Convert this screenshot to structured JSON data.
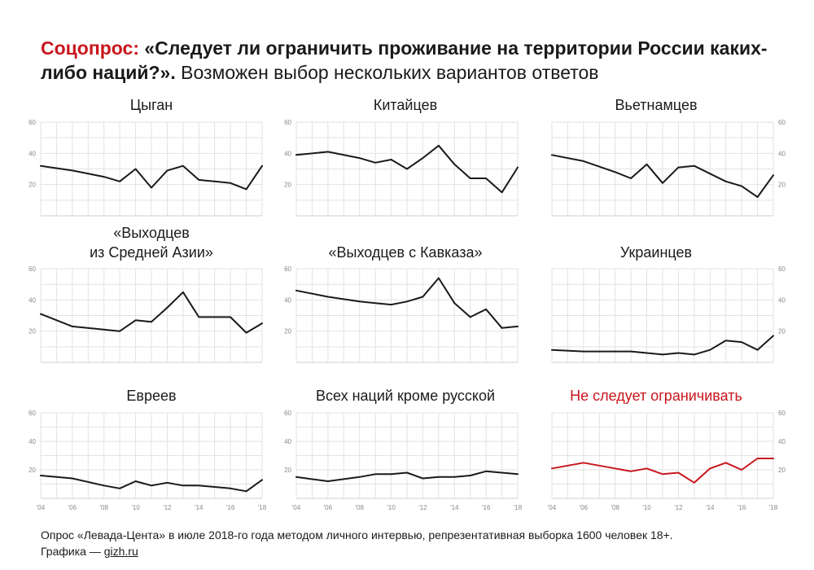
{
  "headline": {
    "tag": "Соцопрос:",
    "question": "«Следует ли ограничить проживание на территории России каких-либо наций?».",
    "note": "Возможен выбор нескольких вариантов ответов"
  },
  "footer": {
    "source": "Опрос «Левада-Цента» в июле 2018-го года методом личного интервью, репрезентативная выборка 1600 человек 18+.",
    "credit_prefix": "Графика — ",
    "credit_link": "gizh.ru"
  },
  "colors": {
    "line": "#1a1a1a",
    "accent": "#c8161d",
    "grid": "#e2e2e2",
    "tick": "#888888"
  },
  "chart_data": [
    {
      "type": "line",
      "title": "Цыган",
      "ylim": [
        0,
        60
      ],
      "yticks": [
        "20",
        "40",
        "60"
      ],
      "x": [
        2004,
        2006,
        2008,
        2009,
        2010,
        2011,
        2012,
        2013,
        2014,
        2015,
        2016,
        2017,
        2018
      ],
      "values": [
        32,
        29,
        25,
        22,
        30,
        18,
        29,
        32,
        23,
        22,
        21,
        17,
        32
      ],
      "color": "#1a1a1a"
    },
    {
      "type": "line",
      "title": "Китайцев",
      "ylim": [
        0,
        60
      ],
      "yticks": [
        "20",
        "40",
        "60"
      ],
      "x": [
        2004,
        2006,
        2008,
        2009,
        2010,
        2011,
        2012,
        2013,
        2014,
        2015,
        2016,
        2017,
        2018
      ],
      "values": [
        39,
        41,
        37,
        34,
        36,
        30,
        37,
        45,
        33,
        24,
        24,
        15,
        31
      ],
      "color": "#1a1a1a"
    },
    {
      "type": "line",
      "title": "Вьетнамцев",
      "ylim": [
        0,
        60
      ],
      "yticks": [
        "20",
        "40",
        "60"
      ],
      "x": [
        2004,
        2006,
        2008,
        2009,
        2010,
        2011,
        2012,
        2013,
        2014,
        2015,
        2016,
        2017,
        2018
      ],
      "values": [
        39,
        35,
        28,
        24,
        33,
        21,
        31,
        32,
        27,
        22,
        19,
        12,
        26
      ],
      "color": "#1a1a1a"
    },
    {
      "type": "line",
      "title": "«Выходцев\nиз Средней Азии»",
      "ylim": [
        0,
        60
      ],
      "yticks": [
        "20",
        "40",
        "60"
      ],
      "x": [
        2004,
        2006,
        2008,
        2009,
        2010,
        2011,
        2012,
        2013,
        2014,
        2015,
        2016,
        2017,
        2018
      ],
      "values": [
        31,
        23,
        21,
        20,
        27,
        26,
        35,
        45,
        29,
        29,
        29,
        19,
        25
      ],
      "color": "#1a1a1a"
    },
    {
      "type": "line",
      "title": "«Выходцев с Кавказа»",
      "ylim": [
        0,
        60
      ],
      "yticks": [
        "20",
        "40",
        "60"
      ],
      "x": [
        2004,
        2006,
        2008,
        2009,
        2010,
        2011,
        2012,
        2013,
        2014,
        2015,
        2016,
        2017,
        2018
      ],
      "values": [
        46,
        42,
        39,
        38,
        37,
        39,
        42,
        54,
        38,
        29,
        34,
        22,
        23
      ],
      "color": "#1a1a1a"
    },
    {
      "type": "line",
      "title": "Украинцев",
      "ylim": [
        0,
        60
      ],
      "yticks": [
        "20",
        "40",
        "60"
      ],
      "x": [
        2004,
        2006,
        2008,
        2009,
        2010,
        2011,
        2012,
        2013,
        2014,
        2015,
        2016,
        2017,
        2018
      ],
      "values": [
        8,
        7,
        7,
        7,
        6,
        5,
        6,
        5,
        8,
        14,
        13,
        8,
        17
      ],
      "color": "#1a1a1a"
    },
    {
      "type": "line",
      "title": "Евреев",
      "ylim": [
        0,
        60
      ],
      "yticks": [
        "20",
        "40",
        "60"
      ],
      "x": [
        2004,
        2006,
        2008,
        2009,
        2010,
        2011,
        2012,
        2013,
        2014,
        2015,
        2016,
        2017,
        2018
      ],
      "values": [
        16,
        14,
        9,
        7,
        12,
        9,
        11,
        9,
        9,
        8,
        7,
        5,
        13
      ],
      "color": "#1a1a1a"
    },
    {
      "type": "line",
      "title": "Всех наций кроме русской",
      "ylim": [
        0,
        60
      ],
      "yticks": [
        "20",
        "40",
        "60"
      ],
      "x": [
        2004,
        2006,
        2008,
        2009,
        2010,
        2011,
        2012,
        2013,
        2014,
        2015,
        2016,
        2017,
        2018
      ],
      "values": [
        15,
        12,
        15,
        17,
        17,
        18,
        14,
        15,
        15,
        16,
        19,
        18,
        17
      ],
      "color": "#1a1a1a"
    },
    {
      "type": "line",
      "title": "Не следует ограничивать",
      "ylim": [
        0,
        60
      ],
      "yticks": [
        "20",
        "40",
        "60"
      ],
      "x": [
        2004,
        2006,
        2008,
        2009,
        2010,
        2011,
        2012,
        2013,
        2014,
        2015,
        2016,
        2017,
        2018
      ],
      "values": [
        21,
        25,
        21,
        19,
        21,
        17,
        18,
        11,
        21,
        25,
        20,
        28,
        28
      ],
      "color": "#c8161d"
    }
  ],
  "xticks": [
    "'04",
    "'06",
    "'08",
    "'10",
    "'12",
    "'14",
    "'16",
    "'18"
  ],
  "xtick_years": [
    2004,
    2006,
    2008,
    2010,
    2012,
    2014,
    2016,
    2018
  ]
}
